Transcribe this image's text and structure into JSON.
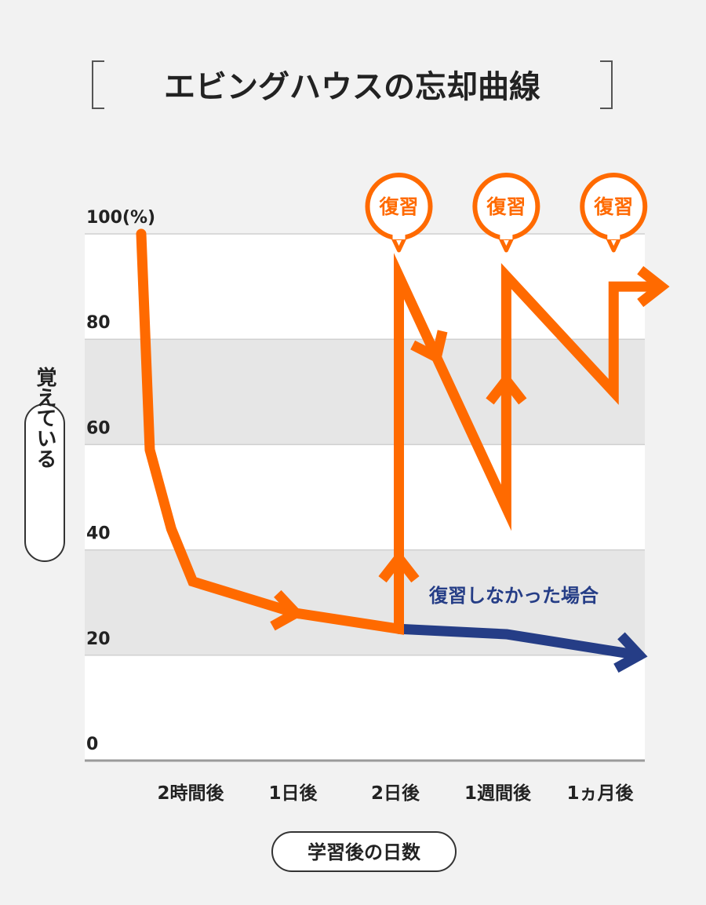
{
  "title": "エビングハウスの忘却曲線",
  "y_axis_title": "覚えている",
  "x_axis_title": "学習後の日数",
  "y_tick_labels": [
    "100(%)",
    "80",
    "60",
    "40",
    "20",
    "0"
  ],
  "x_tick_labels": [
    "2時間後",
    "1日後",
    "2日後",
    "1週間後",
    "1ヵ月後"
  ],
  "review_label": "復習",
  "no_review_label": "復習しなかった場合",
  "colors": {
    "orange": "#ff6a00",
    "navy": "#253d86",
    "band_gray": "#e6e6e6",
    "band_white": "#ffffff",
    "background": "#f2f2f2"
  },
  "chart_data": {
    "type": "line",
    "title": "エビングハウスの忘却曲線",
    "xlabel": "学習後の日数",
    "ylabel": "覚えている",
    "categories": [
      "2時間後",
      "1日後",
      "2日後",
      "1週間後",
      "1ヵ月後"
    ],
    "ylim": [
      0,
      100
    ],
    "yticks": [
      0,
      20,
      40,
      60,
      80,
      100
    ],
    "series": [
      {
        "name": "復習",
        "color": "#ff6a00",
        "points": [
          {
            "x": 0,
            "y": 100
          },
          {
            "x": 0.1,
            "y": 59
          },
          {
            "x": 0.35,
            "y": 44
          },
          {
            "x": 0.6,
            "y": 34
          },
          {
            "x": 1.8,
            "y": 28
          },
          {
            "x": 3,
            "y": 25
          },
          {
            "x": 3,
            "y": 92
          },
          {
            "x": 4.25,
            "y": 48
          },
          {
            "x": 4.25,
            "y": 92
          },
          {
            "x": 5.5,
            "y": 70
          },
          {
            "x": 5.5,
            "y": 90
          },
          {
            "x": 6.0,
            "y": 90
          }
        ]
      },
      {
        "name": "復習しなかった場合",
        "color": "#253d86",
        "points": [
          {
            "x": 3,
            "y": 25
          },
          {
            "x": 4.25,
            "y": 24
          },
          {
            "x": 5.8,
            "y": 20
          }
        ]
      }
    ],
    "review_markers_x": [
      3,
      4.25,
      5.5
    ],
    "grid": "horizontal bands"
  }
}
